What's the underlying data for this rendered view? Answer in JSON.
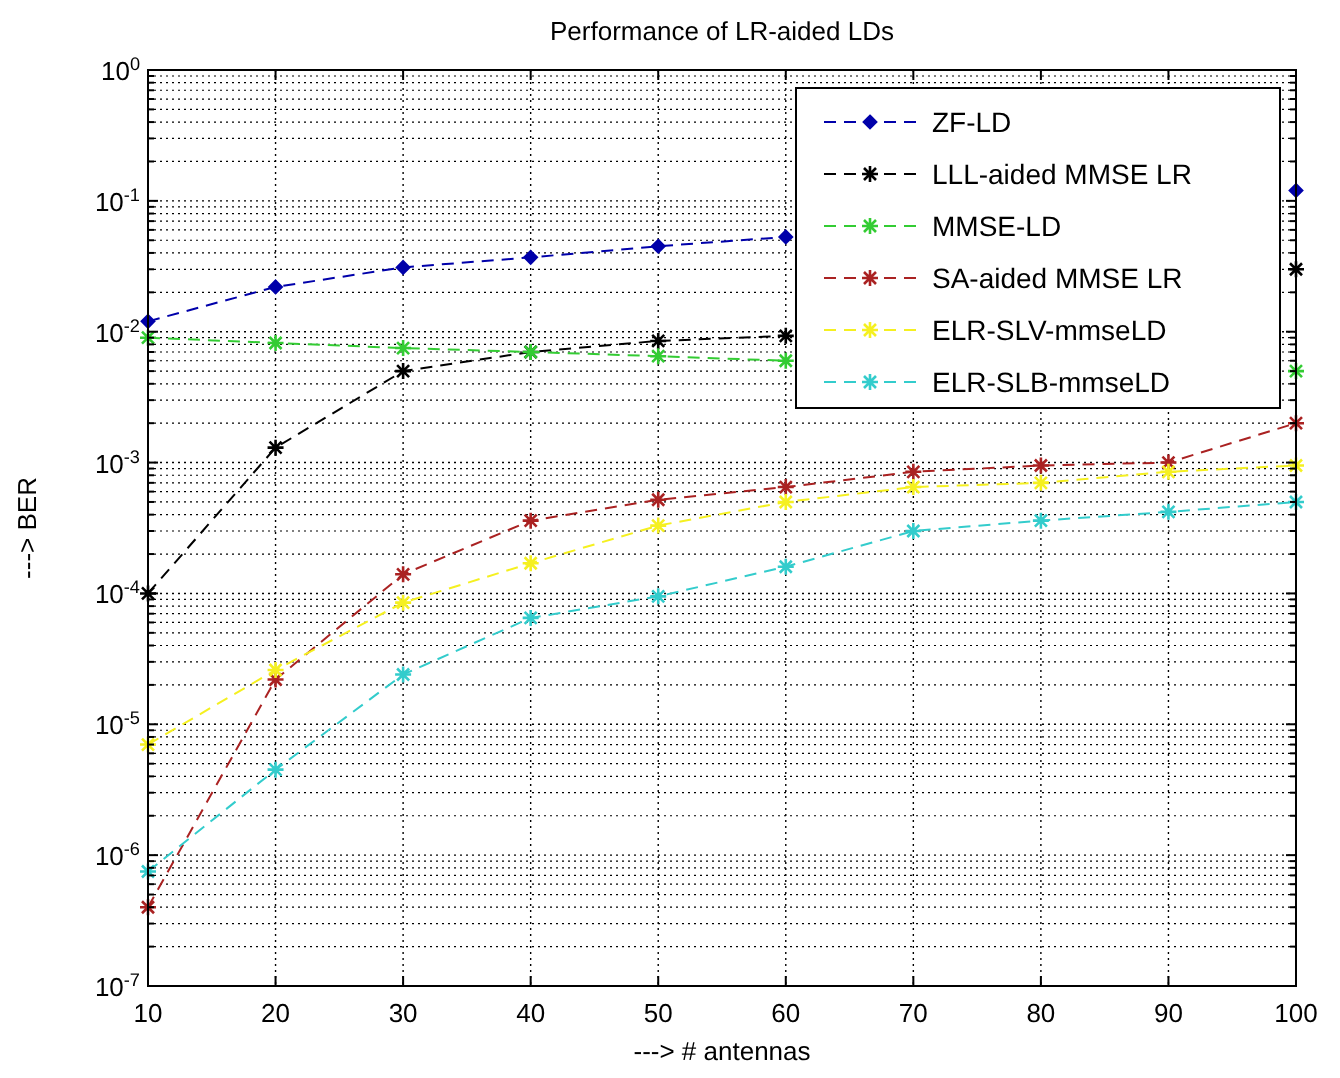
{
  "chart_data": {
    "type": "line",
    "title": "Performance of LR-aided LDs",
    "xlabel": "---> # antennas",
    "ylabel": "---> BER",
    "x": [
      10,
      20,
      30,
      40,
      50,
      60,
      70,
      80,
      90,
      100
    ],
    "series": [
      {
        "name": "ZF-LD",
        "color": "#0000aa",
        "marker": "diamond",
        "values": [
          0.012,
          0.022,
          0.031,
          0.037,
          0.045,
          0.053,
          null,
          null,
          null,
          0.12
        ]
      },
      {
        "name": "LLL-aided MMSE LR",
        "color": "#000000",
        "marker": "cross",
        "values": [
          0.0001,
          0.0013,
          0.005,
          0.007,
          0.0085,
          0.0093,
          null,
          null,
          null,
          0.03
        ]
      },
      {
        "name": "MMSE-LD",
        "color": "#33cc33",
        "marker": "cross",
        "values": [
          0.009,
          0.0082,
          0.0075,
          0.007,
          0.0065,
          0.006,
          null,
          null,
          null,
          0.005
        ]
      },
      {
        "name": "SA-aided MMSE LR",
        "color": "#aa2222",
        "marker": "cross",
        "values": [
          4e-07,
          2.2e-05,
          0.00014,
          0.00036,
          0.00052,
          0.00065,
          0.00085,
          0.00095,
          0.001,
          0.002
        ]
      },
      {
        "name": "ELR-SLV-mmseLD",
        "color": "#f5f020",
        "marker": "cross",
        "values": [
          7e-06,
          2.6e-05,
          8.5e-05,
          0.00017,
          0.00033,
          0.0005,
          0.00065,
          0.0007,
          0.00085,
          0.00095
        ]
      },
      {
        "name": "ELR-SLB-mmseLD",
        "color": "#33cccc",
        "marker": "cross",
        "values": [
          7.5e-07,
          4.5e-06,
          2.4e-05,
          6.5e-05,
          9.5e-05,
          0.00016,
          0.0003,
          0.00036,
          0.00042,
          0.0005
        ]
      }
    ],
    "log": "y",
    "line_style": "dashed",
    "grid": true,
    "legend": "top right",
    "xlim": [
      10,
      100
    ],
    "xticks": [
      10,
      20,
      30,
      40,
      50,
      60,
      70,
      80,
      90,
      100
    ],
    "ylim": [
      1e-07,
      1
    ],
    "yticks": [
      {
        "value": 1e-07,
        "label": "10$^{-7}$"
      },
      {
        "value": 1e-06,
        "label": "10$^{-6}$"
      },
      {
        "value": 1e-05,
        "label": "10$^{-5}$"
      },
      {
        "value": 0.0001,
        "label": "10$^{-4}$"
      },
      {
        "value": 0.001,
        "label": "10$^{-3}$"
      },
      {
        "value": 0.01,
        "label": "10$^{-2}$"
      },
      {
        "value": 0.1,
        "label": "10$^{-1}$"
      },
      {
        "value": 1,
        "label": "10$^{0}$"
      }
    ]
  }
}
